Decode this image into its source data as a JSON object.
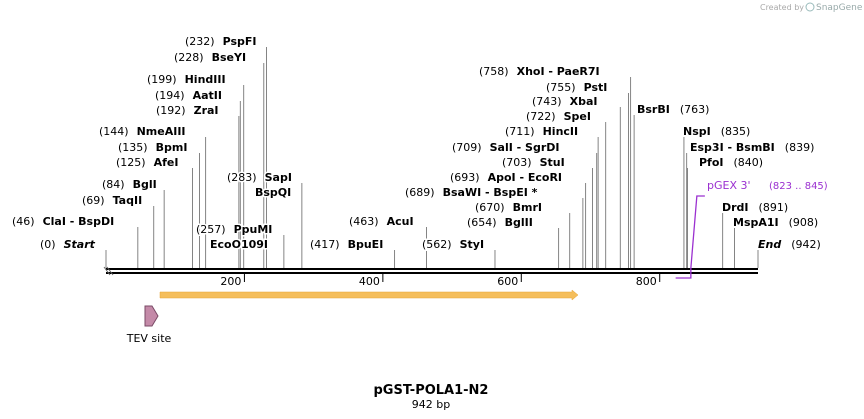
{
  "header": {
    "credit": "Created by",
    "brand": "SnapGene"
  },
  "map": {
    "title": "pGST-POLA1-N2",
    "length_label": "942 bp",
    "xlim": [
      0,
      942
    ],
    "ticks": [
      200,
      400,
      600,
      800
    ],
    "sites": [
      {
        "pos": {
          "value": 0,
          "label": "(0)"
        },
        "names": [
          "Start"
        ]
      },
      {
        "pos": {
          "value": 46,
          "label": "(46)"
        },
        "names": [
          "ClaI  - BspDI"
        ]
      },
      {
        "pos": {
          "value": 69,
          "label": "(69)"
        },
        "names": [
          "TaqII"
        ]
      },
      {
        "pos": {
          "value": 84,
          "label": "(84)"
        },
        "names": [
          "BglI"
        ]
      },
      {
        "pos": {
          "value": 125,
          "label": "(125)"
        },
        "names": [
          "AfeI"
        ]
      },
      {
        "pos": {
          "value": 135,
          "label": "(135)"
        },
        "names": [
          "BpmI"
        ]
      },
      {
        "pos": {
          "value": 144,
          "label": "(144)"
        },
        "names": [
          "NmeAIII"
        ]
      },
      {
        "pos": {
          "value": 192,
          "label": "(192)"
        },
        "names": [
          "ZraI"
        ]
      },
      {
        "pos": {
          "value": 194,
          "label": "(194)"
        },
        "names": [
          "AatII"
        ]
      },
      {
        "pos": {
          "value": 199,
          "label": "(199)"
        },
        "names": [
          "HindIII"
        ]
      },
      {
        "pos": {
          "value": 228,
          "label": "(228)"
        },
        "names": [
          "BseYI"
        ]
      },
      {
        "pos": {
          "value": 232,
          "label": "(232)"
        },
        "names": [
          "PspFI"
        ]
      },
      {
        "pos": {
          "value": 257,
          "label": "(257)"
        },
        "names": [
          "PpuMI",
          "EcoO109I"
        ]
      },
      {
        "pos": {
          "value": 283,
          "label": "(283)"
        },
        "names": [
          "SapI",
          "BspQI"
        ]
      },
      {
        "pos": {
          "value": 417,
          "label": "(417)"
        },
        "names": [
          "BpuEI"
        ]
      },
      {
        "pos": {
          "value": 463,
          "label": "(463)"
        },
        "names": [
          "AcuI"
        ]
      },
      {
        "pos": {
          "value": 562,
          "label": "(562)"
        },
        "names": [
          "StyI"
        ]
      },
      {
        "pos": {
          "value": 654,
          "label": "(654)"
        },
        "names": [
          "BglII"
        ]
      },
      {
        "pos": {
          "value": 670,
          "label": "(670)"
        },
        "names": [
          "BmrI"
        ]
      },
      {
        "pos": {
          "value": 689,
          "label": "(689)"
        },
        "names": [
          "BsaWI  - BspEI *"
        ]
      },
      {
        "pos": {
          "value": 693,
          "label": "(693)"
        },
        "names": [
          "ApoI  - EcoRI"
        ]
      },
      {
        "pos": {
          "value": 703,
          "label": "(703)"
        },
        "names": [
          "StuI"
        ]
      },
      {
        "pos": {
          "value": 709,
          "label": "(709)"
        },
        "names": [
          "SalI  - SgrDI"
        ]
      },
      {
        "pos": {
          "value": 711,
          "label": "(711)"
        },
        "names": [
          "HincII"
        ]
      },
      {
        "pos": {
          "value": 722,
          "label": "(722)"
        },
        "names": [
          "SpeI"
        ]
      },
      {
        "pos": {
          "value": 743,
          "label": "(743)"
        },
        "names": [
          "XbaI"
        ]
      },
      {
        "pos": {
          "value": 755,
          "label": "(755)"
        },
        "names": [
          "PstI"
        ]
      },
      {
        "pos": {
          "value": 758,
          "label": "(758)"
        },
        "names": [
          "XhoI  - PaeR7I"
        ]
      },
      {
        "pos": {
          "value": 763,
          "label": "(763)"
        },
        "names": [
          "BsrBI"
        ]
      },
      {
        "pos": {
          "value": 835,
          "label": "(835)"
        },
        "names": [
          "NspI"
        ]
      },
      {
        "pos": {
          "value": 839,
          "label": "(839)"
        },
        "names": [
          "Esp3I  - BsmBI"
        ]
      },
      {
        "pos": {
          "value": 840,
          "label": "(840)"
        },
        "names": [
          "PfoI"
        ]
      },
      {
        "pos": {
          "value": 891,
          "label": "(891)"
        },
        "names": [
          "DrdI"
        ]
      },
      {
        "pos": {
          "value": 908,
          "label": "(908)"
        },
        "names": [
          "MspA1I"
        ]
      },
      {
        "pos": {
          "value": 942,
          "label": "(942)"
        },
        "names": [
          "End"
        ]
      }
    ],
    "feature": {
      "name": "TEV site"
    },
    "primer": {
      "name": "pGEX 3'",
      "range_label": "(823 .. 845)",
      "start": 823,
      "end": 845
    }
  }
}
